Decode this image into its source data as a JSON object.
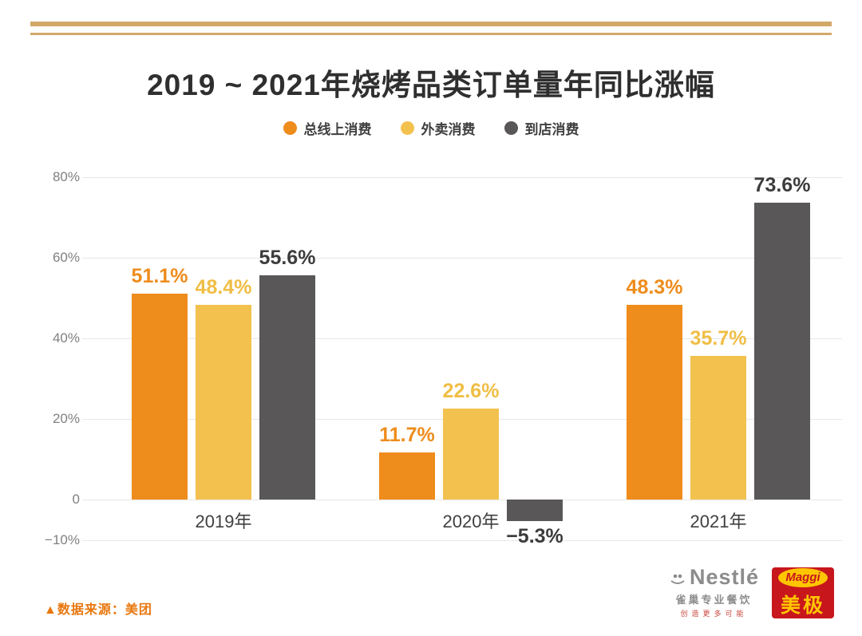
{
  "colors": {
    "rule_tan": "#d2a869",
    "source_orange": "#e8770d",
    "title_dark": "#2f2f2f",
    "grid_gray": "#e7e7e7",
    "tick_gray": "#808080",
    "nestle_gray": "#8c8c8c",
    "maggi_red": "#c8161d",
    "maggi_yellow": "#ffc600"
  },
  "chart_data": {
    "type": "bar",
    "title": "2019 ~ 2021年烧烤品类订单量年同比涨幅",
    "categories": [
      "2019年",
      "2020年",
      "2021年"
    ],
    "series": [
      {
        "name": "总线上消费",
        "color": "#ee8c1c",
        "label_color": "#ee8c1c",
        "values": [
          51.1,
          11.7,
          48.3
        ]
      },
      {
        "name": "外卖消费",
        "color": "#f2c14e",
        "label_color": "#f0be45",
        "values": [
          48.4,
          22.6,
          35.7
        ]
      },
      {
        "name": "到店消费",
        "color": "#595757",
        "label_color": "#3c3c3c",
        "values": [
          55.6,
          -5.3,
          73.6
        ]
      }
    ],
    "ylim": [
      -10,
      80
    ],
    "yticks": [
      80,
      60,
      40,
      20,
      0,
      -10
    ],
    "ytick_labels": [
      "80%",
      "60%",
      "40%",
      "20%",
      "0",
      "−10%"
    ],
    "value_suffix": "%",
    "grid": true,
    "legend_position": "top"
  },
  "footer": {
    "marker": "▲",
    "source": "数据来源：美团"
  },
  "logos": {
    "nestle_word": "Nestlé",
    "nestle_sub": "雀巢专业餐饮",
    "nestle_tagline": "创造更多可能",
    "maggi_word": "Maggi",
    "maggi_cn": "美极"
  }
}
